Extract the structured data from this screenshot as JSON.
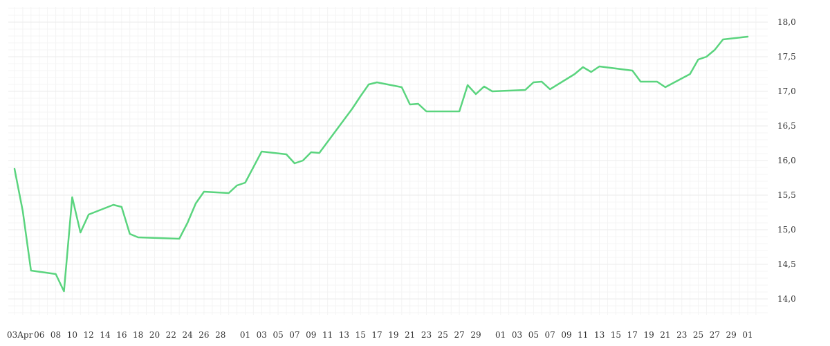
{
  "chart_data": {
    "type": "line",
    "title": "",
    "xlabel": "",
    "ylabel": "",
    "ylim": [
      13.77,
      18.22
    ],
    "grid": true,
    "legend": "none",
    "line_color": "#5ad47e",
    "y_ticks": [
      "14,0",
      "14,5",
      "15,0",
      "15,5",
      "16,0",
      "16,5",
      "17,0",
      "17,5",
      "18,0"
    ],
    "x_ticks": [
      "03Apr",
      "06",
      "08",
      "10",
      "12",
      "14",
      "16",
      "18",
      "20",
      "22",
      "24",
      "26",
      "28",
      "01",
      "03",
      "05",
      "07",
      "09",
      "11",
      "13",
      "15",
      "17",
      "19",
      "21",
      "23",
      "25",
      "27",
      "29",
      "01",
      "03",
      "05",
      "07",
      "09",
      "11",
      "13",
      "15",
      "17",
      "19",
      "21",
      "23",
      "25",
      "27",
      "29",
      "01"
    ],
    "series": [
      {
        "x": [
          "2024-04-03",
          "2024-04-04",
          "2024-04-05",
          "2024-04-08",
          "2024-04-09",
          "2024-04-10",
          "2024-04-11",
          "2024-04-12",
          "2024-04-15",
          "2024-04-16",
          "2024-04-17",
          "2024-04-18",
          "2024-04-23",
          "2024-04-24",
          "2024-04-25",
          "2024-04-26",
          "2024-04-29",
          "2024-04-30",
          "2024-05-01",
          "2024-05-03",
          "2024-05-06",
          "2024-05-07",
          "2024-05-08",
          "2024-05-09",
          "2024-05-10",
          "2024-05-14",
          "2024-05-15",
          "2024-05-16",
          "2024-05-17",
          "2024-05-20",
          "2024-05-21",
          "2024-05-22",
          "2024-05-23",
          "2024-05-24",
          "2024-05-27",
          "2024-05-28",
          "2024-05-29",
          "2024-05-30",
          "2024-05-31",
          "2024-06-04",
          "2024-06-05",
          "2024-06-06",
          "2024-06-07",
          "2024-06-10",
          "2024-06-11",
          "2024-06-12",
          "2024-06-13",
          "2024-06-17",
          "2024-06-18",
          "2024-06-20",
          "2024-06-21",
          "2024-06-24",
          "2024-06-25",
          "2024-06-26",
          "2024-06-27",
          "2024-06-28",
          "2024-07-01"
        ],
        "values": [
          15.88,
          15.27,
          14.41,
          14.36,
          14.11,
          15.47,
          14.96,
          15.22,
          15.36,
          15.33,
          14.94,
          14.89,
          14.87,
          15.1,
          15.38,
          15.55,
          15.53,
          15.64,
          15.68,
          16.13,
          16.09,
          15.96,
          16.0,
          16.12,
          16.11,
          16.75,
          16.93,
          17.1,
          17.13,
          17.06,
          16.81,
          16.82,
          16.71,
          16.71,
          16.71,
          17.09,
          16.96,
          17.07,
          17.0,
          17.02,
          17.13,
          17.14,
          17.03,
          17.25,
          17.35,
          17.28,
          17.36,
          17.3,
          17.14,
          17.14,
          17.06,
          17.25,
          17.46,
          17.5,
          17.6,
          17.75,
          17.79
        ]
      }
    ]
  }
}
